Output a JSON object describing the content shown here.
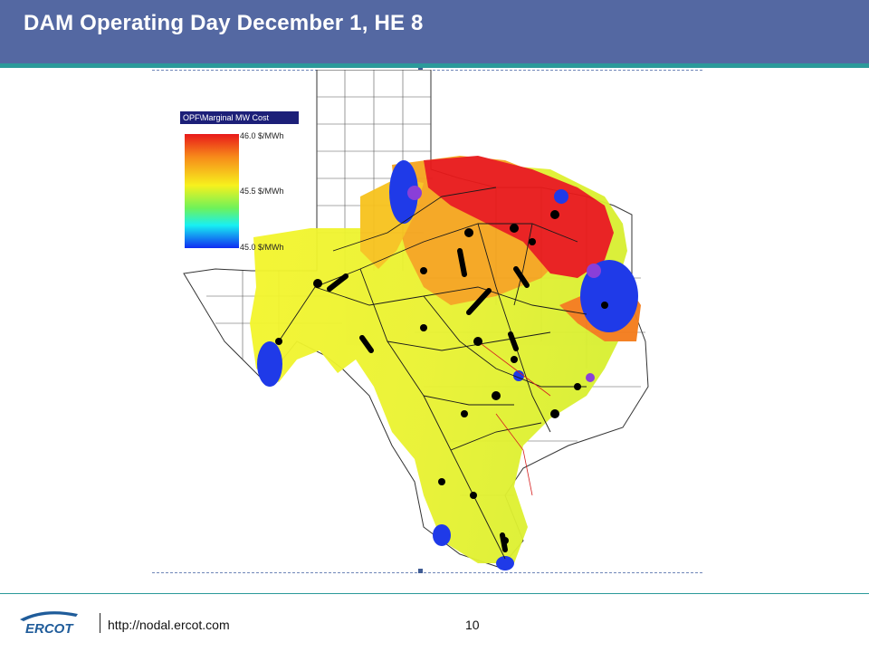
{
  "slide": {
    "title": "DAM Operating Day December 1, HE 8"
  },
  "legend": {
    "title": "OPF\\Marginal MW Cost",
    "max_label": "46.0 $/MWh",
    "mid_label": "45.5 $/MWh",
    "min_label": "45.0 $/MWh",
    "colors": [
      "#e8191a",
      "#f78a1a",
      "#f7f11d",
      "#6ef25a",
      "#18f0f2",
      "#0f2cf2"
    ]
  },
  "map": {
    "subject": "texas-marginal-cost-contour-map"
  },
  "footer": {
    "logo_text": "ERCOT",
    "url": "http://nodal.ercot.com",
    "page_number": "10"
  }
}
